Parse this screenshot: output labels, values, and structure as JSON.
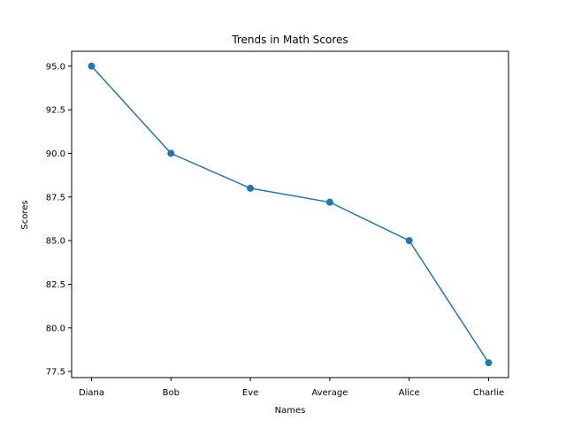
{
  "chart_data": {
    "type": "line",
    "title": "Trends in Math Scores",
    "xlabel": "Names",
    "ylabel": "Scores",
    "categories": [
      "Diana",
      "Bob",
      "Eve",
      "Average",
      "Alice",
      "Charlie"
    ],
    "series": [
      {
        "values": [
          95.0,
          90.0,
          88.0,
          87.2,
          85.0,
          78.0
        ]
      }
    ],
    "ylim": [
      77.15,
      95.85
    ],
    "yticks": [
      77.5,
      80.0,
      82.5,
      85.0,
      87.5,
      90.0,
      92.5,
      95.0
    ],
    "ytick_labels": [
      "77.5",
      "80.0",
      "82.5",
      "85.0",
      "87.5",
      "90.0",
      "92.5",
      "95.0"
    ],
    "markers": true,
    "grid": false,
    "legend": "none",
    "line_color": "#1f77b4"
  }
}
